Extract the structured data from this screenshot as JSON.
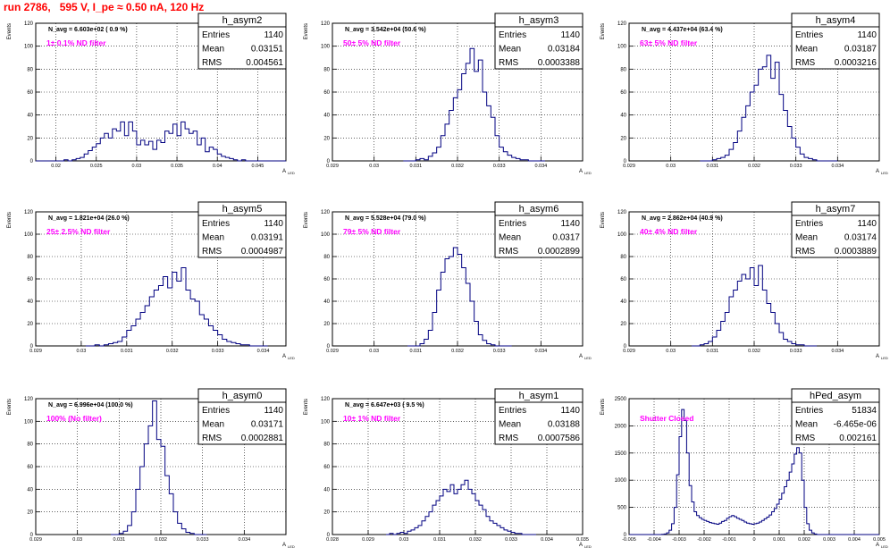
{
  "page_title": "run 2786,   595 V, I_pe ≈ 0.50 nA, 120 Hz",
  "colors": {
    "histogram": "#000080",
    "note": "#ff00ff",
    "title": "#ff0000",
    "grid": "#000000"
  },
  "chart_data": [
    {
      "type": "bar",
      "name": "h_asym2",
      "stats": {
        "entries": "1140",
        "mean": "0.03151",
        "rms": "0.004561"
      },
      "n_avg_label": "N_avg = 6.603e+02 ( 0.9 %)",
      "note": "1± 0.1% ND filter",
      "xlim": [
        0.0175,
        0.0485
      ],
      "ylim": [
        0,
        120
      ],
      "xticks": [
        0.02,
        0.025,
        0.03,
        0.035,
        0.04,
        0.045
      ],
      "xtick_labels": [
        "0.02",
        "0.025",
        "0.03",
        "0.035",
        "0.04",
        "0.045"
      ],
      "yticks": [
        0,
        20,
        40,
        60,
        80,
        100,
        120
      ],
      "xlabel": "A_LED",
      "ylabel": "Events",
      "bin_start": 0.0175,
      "bin_width": 0.0005,
      "values": [
        0,
        0,
        0,
        0,
        0,
        0,
        0,
        1,
        0,
        1,
        2,
        3,
        6,
        9,
        12,
        15,
        20,
        24,
        20,
        28,
        26,
        34,
        22,
        34,
        26,
        14,
        18,
        14,
        17,
        10,
        18,
        16,
        26,
        24,
        32,
        22,
        34,
        28,
        24,
        26,
        14,
        20,
        8,
        12,
        10,
        6,
        4,
        3,
        2,
        1,
        0,
        1,
        0,
        0,
        0,
        0,
        0,
        0,
        0,
        0,
        0,
        0
      ]
    },
    {
      "type": "bar",
      "name": "h_asym3",
      "stats": {
        "entries": "1140",
        "mean": "0.03184",
        "rms": "0.0003388"
      },
      "n_avg_label": "N_avg = 3.542e+04 (50.6 %)",
      "note": "50± 5% ND filter",
      "xlim": [
        0.029,
        0.035
      ],
      "ylim": [
        0,
        120
      ],
      "xticks": [
        0.029,
        0.03,
        0.031,
        0.032,
        0.033,
        0.034
      ],
      "xtick_labels": [
        "0.029",
        "0.03",
        "0.031",
        "0.032",
        "0.033",
        "0.034"
      ],
      "yticks": [
        0,
        20,
        40,
        60,
        80,
        100,
        120
      ],
      "xlabel": "A_LED",
      "ylabel": "Events",
      "bin_start": 0.0307,
      "bin_width": 0.0001,
      "values": [
        0,
        0,
        0,
        1,
        2,
        1,
        4,
        7,
        12,
        22,
        32,
        44,
        55,
        62,
        76,
        85,
        98,
        78,
        88,
        60,
        48,
        38,
        22,
        12,
        8,
        5,
        3,
        2,
        1,
        1,
        0,
        0,
        0,
        0
      ]
    },
    {
      "type": "bar",
      "name": "h_asym4",
      "stats": {
        "entries": "1140",
        "mean": "0.03187",
        "rms": "0.0003216"
      },
      "n_avg_label": "N_avg = 4.437e+04 (63.4 %)",
      "note": "63± 5% ND filter",
      "xlim": [
        0.029,
        0.035
      ],
      "ylim": [
        0,
        120
      ],
      "xticks": [
        0.029,
        0.03,
        0.031,
        0.032,
        0.033,
        0.034
      ],
      "xtick_labels": [
        "0.029",
        "0.03",
        "0.031",
        "0.032",
        "0.033",
        "0.034"
      ],
      "yticks": [
        0,
        20,
        40,
        60,
        80,
        100,
        120
      ],
      "xlabel": "A_LED",
      "ylabel": "Events",
      "bin_start": 0.0307,
      "bin_width": 0.0001,
      "values": [
        0,
        0,
        0,
        1,
        2,
        3,
        5,
        10,
        16,
        26,
        38,
        48,
        60,
        66,
        80,
        82,
        92,
        72,
        86,
        58,
        44,
        30,
        20,
        12,
        6,
        3,
        2,
        1,
        0,
        0,
        0,
        0,
        0
      ]
    },
    {
      "type": "bar",
      "name": "h_asym5",
      "stats": {
        "entries": "1140",
        "mean": "0.03191",
        "rms": "0.0004987"
      },
      "n_avg_label": "N_avg = 1.821e+04 (26.0 %)",
      "note": "25± 2.5% ND filter",
      "xlim": [
        0.029,
        0.0345
      ],
      "ylim": [
        0,
        120
      ],
      "xticks": [
        0.029,
        0.03,
        0.031,
        0.032,
        0.033,
        0.034
      ],
      "xtick_labels": [
        "0.029",
        "0.03",
        "0.031",
        "0.032",
        "0.033",
        "0.034"
      ],
      "yticks": [
        0,
        20,
        40,
        60,
        80,
        100,
        120
      ],
      "xlabel": "A_LED",
      "ylabel": "Events",
      "bin_start": 0.0301,
      "bin_width": 0.0001,
      "values": [
        0,
        0,
        1,
        0,
        1,
        2,
        3,
        4,
        8,
        14,
        18,
        24,
        30,
        36,
        44,
        50,
        54,
        62,
        52,
        66,
        58,
        70,
        50,
        42,
        40,
        28,
        24,
        18,
        14,
        10,
        6,
        4,
        3,
        2,
        1,
        1,
        0,
        0,
        0,
        0
      ]
    },
    {
      "type": "bar",
      "name": "h_asym6",
      "stats": {
        "entries": "1140",
        "mean": "0.0317",
        "rms": "0.0002899"
      },
      "n_avg_label": "N_avg = 5.528e+04 (79.0 %)",
      "note": "79± 5% ND filter",
      "xlim": [
        0.029,
        0.035
      ],
      "ylim": [
        0,
        120
      ],
      "xticks": [
        0.029,
        0.03,
        0.031,
        0.032,
        0.033,
        0.034
      ],
      "xtick_labels": [
        "0.029",
        "0.03",
        "0.031",
        "0.032",
        "0.033",
        "0.034"
      ],
      "yticks": [
        0,
        20,
        40,
        60,
        80,
        100,
        120
      ],
      "xlabel": "A_LED",
      "ylabel": "Events",
      "bin_start": 0.0308,
      "bin_width": 0.0001,
      "values": [
        0,
        0,
        0,
        2,
        6,
        14,
        30,
        50,
        66,
        78,
        80,
        88,
        82,
        70,
        56,
        40,
        22,
        10,
        5,
        2,
        1,
        0,
        0,
        0,
        0
      ]
    },
    {
      "type": "bar",
      "name": "h_asym7",
      "stats": {
        "entries": "1140",
        "mean": "0.03174",
        "rms": "0.0003889"
      },
      "n_avg_label": "N_avg = 2.862e+04 (40.9 %)",
      "note": "40± 4% ND filter",
      "xlim": [
        0.029,
        0.035
      ],
      "ylim": [
        0,
        120
      ],
      "xticks": [
        0.029,
        0.03,
        0.031,
        0.032,
        0.033,
        0.034
      ],
      "xtick_labels": [
        "0.029",
        "0.03",
        "0.031",
        "0.032",
        "0.033",
        "0.034"
      ],
      "yticks": [
        0,
        20,
        40,
        60,
        80,
        100,
        120
      ],
      "xlabel": "A_LED",
      "ylabel": "Events",
      "bin_start": 0.0305,
      "bin_width": 0.0001,
      "values": [
        0,
        0,
        1,
        2,
        4,
        8,
        14,
        22,
        30,
        44,
        50,
        58,
        64,
        60,
        70,
        54,
        72,
        50,
        38,
        30,
        20,
        12,
        6,
        4,
        2,
        1,
        1,
        0,
        0,
        0
      ]
    },
    {
      "type": "bar",
      "name": "h_asym0",
      "stats": {
        "entries": "1140",
        "mean": "0.03171",
        "rms": "0.0002881"
      },
      "n_avg_label": "N_avg = 6.996e+04 (100.0 %)",
      "note": "100% (No filter)",
      "xlim": [
        0.029,
        0.035
      ],
      "ylim": [
        0,
        120
      ],
      "xticks": [
        0.029,
        0.03,
        0.031,
        0.032,
        0.033,
        0.034
      ],
      "xtick_labels": [
        "0.029",
        "0.03",
        "0.031",
        "0.032",
        "0.033",
        "0.034"
      ],
      "yticks": [
        0,
        20,
        40,
        60,
        80,
        100,
        120
      ],
      "xlabel": "A_LED",
      "ylabel": "Events",
      "bin_start": 0.0308,
      "bin_width": 0.0001,
      "values": [
        0,
        0,
        1,
        3,
        8,
        20,
        40,
        60,
        80,
        96,
        118,
        84,
        78,
        52,
        36,
        20,
        10,
        5,
        2,
        1,
        0,
        0,
        0
      ]
    },
    {
      "type": "bar",
      "name": "h_asym1",
      "stats": {
        "entries": "1140",
        "mean": "0.03188",
        "rms": "0.0007586"
      },
      "n_avg_label": "N_avg = 6.647e+03 ( 9.5 %)",
      "note": "10± 1% ND filter",
      "xlim": [
        0.028,
        0.035
      ],
      "ylim": [
        0,
        120
      ],
      "xticks": [
        0.028,
        0.029,
        0.03,
        0.031,
        0.032,
        0.033,
        0.034,
        0.035
      ],
      "xtick_labels": [
        "0.028",
        "0.029",
        "0.03",
        "0.031",
        "0.032",
        "0.033",
        "0.034",
        "0.035"
      ],
      "yticks": [
        0,
        20,
        40,
        60,
        80,
        100,
        120
      ],
      "xlabel": "A_LED",
      "ylabel": "Events",
      "bin_start": 0.0295,
      "bin_width": 0.0001,
      "values": [
        0,
        1,
        0,
        1,
        2,
        1,
        3,
        4,
        6,
        8,
        12,
        16,
        20,
        26,
        30,
        34,
        40,
        38,
        44,
        36,
        40,
        44,
        48,
        40,
        36,
        30,
        26,
        22,
        16,
        12,
        10,
        8,
        6,
        4,
        3,
        2,
        1,
        1,
        0,
        0,
        0,
        0
      ]
    },
    {
      "type": "bar",
      "name": "hPed_asym",
      "stats": {
        "entries": "51834",
        "mean": "-6.465e-06",
        "rms": "0.002161"
      },
      "n_avg_label": "",
      "note": "Shutter Closed",
      "xlim": [
        -0.005,
        0.005
      ],
      "ylim": [
        0,
        2500
      ],
      "xticks": [
        -0.005,
        -0.004,
        -0.003,
        -0.002,
        -0.001,
        0,
        0.001,
        0.002,
        0.003,
        0.004,
        0.005
      ],
      "xtick_labels": [
        "-0.005",
        "-0.004",
        "-0.003",
        "-0.002",
        "-0.001",
        "0",
        "0.001",
        "0.002",
        "0.003",
        "0.004",
        "0.005"
      ],
      "yticks": [
        0,
        500,
        1000,
        1500,
        2000,
        2500
      ],
      "xlabel": "A_LED",
      "ylabel": "Events",
      "bin_start": -0.005,
      "bin_width": 0.0001,
      "values": [
        0,
        0,
        0,
        0,
        0,
        0,
        0,
        0,
        0,
        0,
        0,
        0,
        0,
        5,
        10,
        30,
        80,
        200,
        500,
        1100,
        1800,
        2300,
        2100,
        1500,
        900,
        600,
        420,
        350,
        310,
        280,
        260,
        240,
        220,
        210,
        200,
        190,
        210,
        240,
        260,
        300,
        330,
        350,
        330,
        300,
        280,
        260,
        230,
        210,
        200,
        190,
        200,
        210,
        230,
        260,
        290,
        320,
        360,
        420,
        480,
        560,
        650,
        760,
        880,
        1000,
        1150,
        1300,
        1480,
        1600,
        1500,
        1000,
        500,
        200,
        80,
        30,
        10,
        0,
        0,
        0,
        0,
        0,
        0,
        0,
        0,
        0,
        0,
        0,
        0,
        0,
        0,
        0,
        0,
        0,
        0,
        0,
        0,
        0,
        0,
        0,
        0,
        0,
        0,
        0
      ]
    }
  ]
}
